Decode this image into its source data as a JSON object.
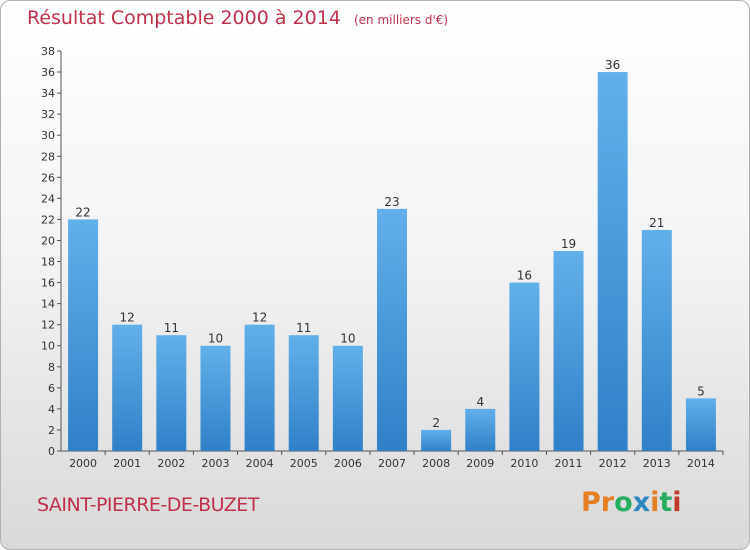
{
  "header": {
    "title": "Résultat Comptable 2000 à 2014",
    "unit": "(en milliers d'€)"
  },
  "footer": {
    "commune": "SAINT-PIERRE-DE-BUZET",
    "logo_text": "Proxiti"
  },
  "colors": {
    "title": "#c0304a",
    "bar_light": "#62b0ea",
    "bar_dark": "#2f80c8",
    "logo": [
      "#e67e22",
      "#e67e22",
      "#27ae60",
      "#2e86c1",
      "#e67e22",
      "#27ae60",
      "#c0392b"
    ]
  },
  "chart_data": {
    "type": "bar",
    "title": "Résultat Comptable 2000 à 2014",
    "subtitle": "(en milliers d'€)",
    "categories": [
      "2000",
      "2001",
      "2002",
      "2003",
      "2004",
      "2005",
      "2006",
      "2007",
      "2008",
      "2009",
      "2010",
      "2011",
      "2012",
      "2013",
      "2014"
    ],
    "values": [
      22,
      12,
      11,
      10,
      12,
      11,
      10,
      23,
      2,
      4,
      16,
      19,
      36,
      21,
      5
    ],
    "ylim": [
      0,
      38
    ],
    "yticks": [
      0,
      2,
      4,
      6,
      8,
      10,
      12,
      14,
      16,
      18,
      20,
      22,
      24,
      26,
      28,
      30,
      32,
      34,
      36,
      38
    ],
    "grid": false,
    "data_labels": true
  }
}
